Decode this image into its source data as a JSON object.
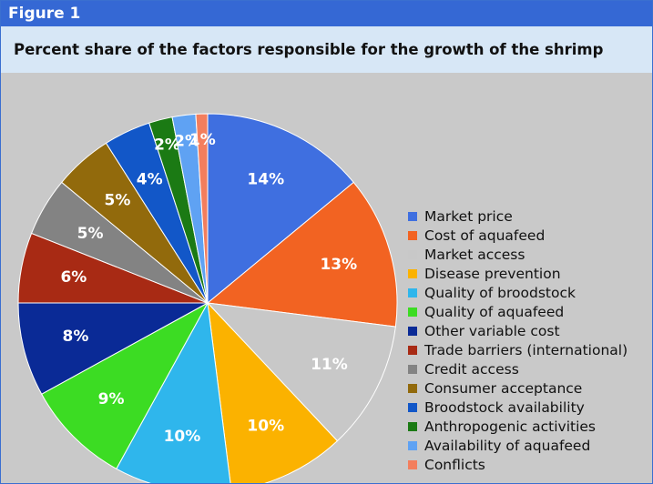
{
  "figure_label": "Figure 1",
  "chart_data": {
    "type": "pie",
    "title": "Percent share of the factors responsible for the growth of the shrimp industry.",
    "legend_position": "right",
    "slices": [
      {
        "label": "Market price",
        "value": 14,
        "display": "14%",
        "color": "#3f6fe0"
      },
      {
        "label": "Cost of aquafeed",
        "value": 13,
        "display": "13%",
        "color": "#f26322"
      },
      {
        "label": "Market access",
        "value": 11,
        "display": "11%",
        "color": "#c8c8c8"
      },
      {
        "label": "Disease prevention",
        "value": 10,
        "display": "10%",
        "color": "#fbb200"
      },
      {
        "label": "Quality of broodstock",
        "value": 10,
        "display": "10%",
        "color": "#2fb6ec"
      },
      {
        "label": "Quality of aquafeed",
        "value": 9,
        "display": "9%",
        "color": "#3cdc23"
      },
      {
        "label": "Other variable cost",
        "value": 8,
        "display": "8%",
        "color": "#0a2a96"
      },
      {
        "label": "Trade barriers (international)",
        "value": 6,
        "display": "6%",
        "color": "#a82a14"
      },
      {
        "label": "Credit access",
        "value": 5,
        "display": "5%",
        "color": "#838383"
      },
      {
        "label": "Consumer acceptance",
        "value": 5,
        "display": "5%",
        "color": "#926a0c"
      },
      {
        "label": "Broodstock availability",
        "value": 4,
        "display": "4%",
        "color": "#1257c8"
      },
      {
        "label": "Anthropogenic activities",
        "value": 2,
        "display": "2%",
        "color": "#1b7a14"
      },
      {
        "label": "Availability of aquafeed",
        "value": 2,
        "display": "2%",
        "color": "#5fa2f3"
      },
      {
        "label": "Conflicts",
        "value": 1,
        "display": "1%",
        "color": "#f37e5d"
      }
    ]
  }
}
